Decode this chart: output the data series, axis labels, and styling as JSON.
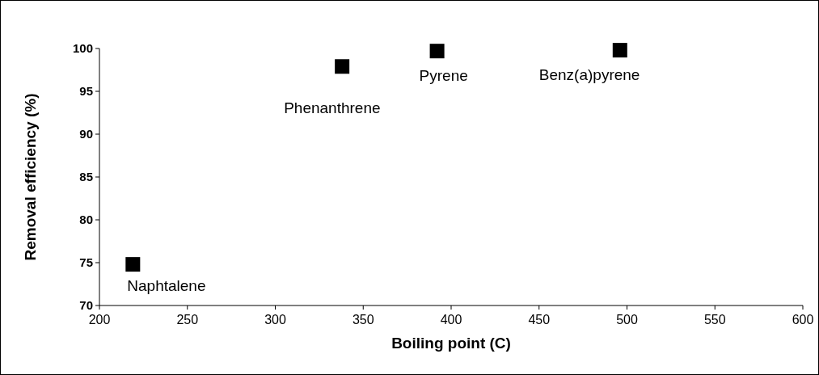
{
  "chart_data": {
    "type": "scatter",
    "xlabel": "Boiling point (C)",
    "ylabel": "Removal efficiency (%)",
    "x": [
      219,
      338,
      392,
      496
    ],
    "series": [
      {
        "color": "#000000",
        "values": [
          74.8,
          97.9,
          99.7,
          99.8
        ]
      }
    ],
    "xlim": [
      200,
      600
    ],
    "xticks": [
      200,
      250,
      300,
      350,
      400,
      450,
      500,
      550,
      600
    ],
    "ylim": [
      70,
      100
    ],
    "yticks": [
      70,
      75,
      80,
      85,
      90,
      95,
      100
    ],
    "marker": "square",
    "grid": false,
    "annotations": [
      {
        "text": "Naphtalene",
        "x": 219,
        "y": 74.8
      },
      {
        "text": "Phenanthrene",
        "x": 338,
        "y": 97.9
      },
      {
        "text": "Pyrene",
        "x": 392,
        "y": 99.7
      },
      {
        "text": "Benz(a)pyrene",
        "x": 496,
        "y": 99.8
      }
    ]
  }
}
